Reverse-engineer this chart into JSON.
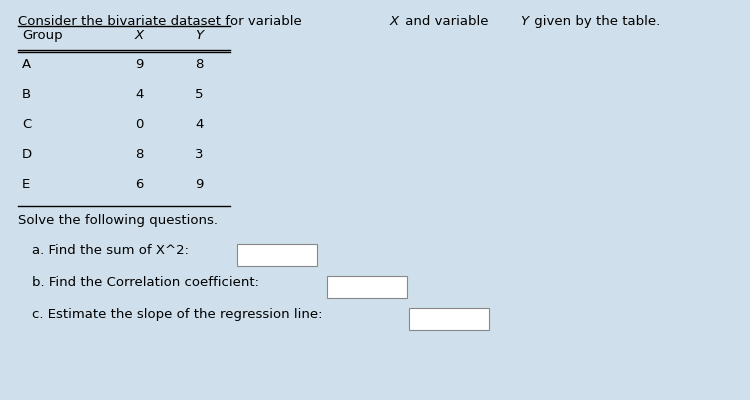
{
  "background_color": "#cfe0ec",
  "title_seg1": "Consider the bivariate dataset for variable ",
  "title_seg2": "X",
  "title_seg3": " and variable ",
  "title_seg4": "Y",
  "title_seg5": " given by the table.",
  "col_headers": [
    "Group",
    "X",
    "Y"
  ],
  "rows": [
    [
      "A",
      "9",
      "8"
    ],
    [
      "B",
      "4",
      "5"
    ],
    [
      "C",
      "0",
      "4"
    ],
    [
      "D",
      "8",
      "3"
    ],
    [
      "E",
      "6",
      "9"
    ]
  ],
  "solve_text": "Solve the following questions.",
  "questions": [
    "a. Find the sum of X^2:",
    "b. Find the Correlation coefficient:",
    "c. Estimate the slope of the regression line:"
  ],
  "font_size": 9.5,
  "title_font_size": 9.5
}
